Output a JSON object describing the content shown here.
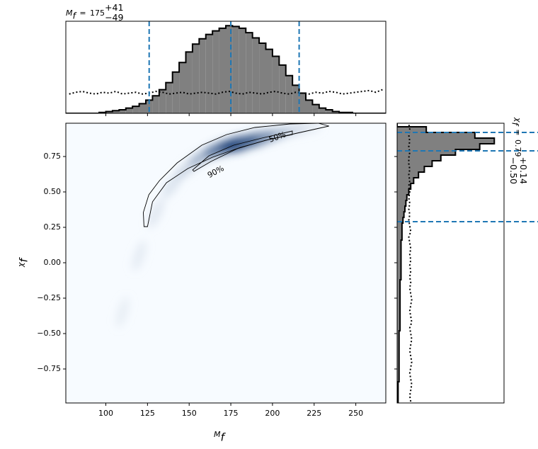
{
  "chart_data": [
    {
      "type": "density",
      "xlabel": {
        "symbol": "M",
        "sub": "f"
      },
      "ylabel": {
        "symbol": "χ",
        "sub": "f"
      },
      "xlim": [
        76,
        268
      ],
      "ylim": [
        -0.99,
        0.985
      ],
      "xticks": [
        100,
        125,
        150,
        175,
        200,
        225,
        250
      ],
      "yticks": [
        {
          "value": -0.75,
          "label": "−0.75"
        },
        {
          "value": -0.5,
          "label": "−0.50"
        },
        {
          "value": -0.25,
          "label": "−0.25"
        },
        {
          "value": 0,
          "label": "0.00"
        },
        0.25,
        {
          "value": 0.5,
          "label": "0.50"
        },
        0.75
      ],
      "cmap": [
        "#f7fbff",
        "#08306b"
      ],
      "density": {
        "x": [
          110,
          120,
          130,
          140,
          150,
          160,
          170,
          180,
          190,
          200,
          210,
          220
        ],
        "y": [
          -0.35,
          0.05,
          0.35,
          0.55,
          0.68,
          0.76,
          0.81,
          0.84,
          0.87,
          0.9,
          0.93,
          0.95
        ],
        "values": [
          0.03,
          0.06,
          0.1,
          0.15,
          0.25,
          0.45,
          0.75,
          1.0,
          0.8,
          0.45,
          0.2,
          0.08
        ]
      },
      "contour_color": "#000000",
      "contours": [
        {
          "label": "90%",
          "x": [
            122.9,
            122.5,
            125.8,
            132.2,
            142.8,
            157.6,
            172.5,
            189.4,
            210.6,
            227.5,
            233.9,
            214.8,
            197.9,
            180.9,
            164.0,
            149.2,
            136.4,
            128.0,
            125.0
          ],
          "y": [
            0.255,
            0.355,
            0.48,
            0.58,
            0.705,
            0.83,
            0.905,
            0.955,
            0.98,
            0.985,
            0.965,
            0.915,
            0.87,
            0.815,
            0.745,
            0.665,
            0.565,
            0.43,
            0.255
          ]
        },
        {
          "label": "50%",
          "x": [
            152.1,
            161.9,
            176.7,
            193.6,
            211.9,
            211.9,
            195.8,
            178.8,
            163.1,
            152.9
          ],
          "y": [
            0.655,
            0.755,
            0.83,
            0.88,
            0.93,
            0.905,
            0.865,
            0.805,
            0.715,
            0.645
          ]
        }
      ]
    },
    {
      "type": "histogram",
      "orientation": "vertical",
      "title": {
        "symbol": "M",
        "sub": "f",
        "relation": "=",
        "value": 175,
        "upper": "+41",
        "lower": "−49"
      },
      "xlim": [
        76,
        268
      ],
      "ylim": [
        0,
        1.05
      ],
      "xticks": [
        100,
        125,
        150,
        175,
        200,
        225,
        250
      ],
      "bins": [
        76,
        80,
        84,
        88,
        92,
        96,
        100,
        104,
        108,
        112,
        116,
        120,
        124,
        128,
        132,
        136,
        140,
        144,
        148,
        152,
        156,
        160,
        164,
        168,
        172,
        176,
        180,
        184,
        188,
        192,
        196,
        200,
        204,
        208,
        212,
        216,
        220,
        224,
        228,
        232,
        236,
        240,
        244,
        248,
        252,
        256,
        260,
        264,
        268
      ],
      "values": [
        0,
        0,
        0,
        0,
        0,
        0.01,
        0.02,
        0.03,
        0.04,
        0.06,
        0.08,
        0.11,
        0.15,
        0.2,
        0.27,
        0.35,
        0.47,
        0.58,
        0.7,
        0.79,
        0.85,
        0.9,
        0.94,
        0.97,
        1.0,
        0.99,
        0.97,
        0.92,
        0.86,
        0.8,
        0.73,
        0.65,
        0.55,
        0.43,
        0.32,
        0.23,
        0.15,
        0.1,
        0.06,
        0.04,
        0.02,
        0.01,
        0.01,
        0,
        0,
        0,
        0,
        0
      ],
      "prior": [
        0.22,
        0.24,
        0.25,
        0.23,
        0.22,
        0.24,
        0.23,
        0.25,
        0.22,
        0.23,
        0.24,
        0.22,
        0.23,
        0.25,
        0.24,
        0.22,
        0.23,
        0.24,
        0.22,
        0.23,
        0.24,
        0.23,
        0.22,
        0.24,
        0.25,
        0.23,
        0.22,
        0.24,
        0.23,
        0.22,
        0.24,
        0.25,
        0.23,
        0.22,
        0.24,
        0.23,
        0.22,
        0.24,
        0.23,
        0.25,
        0.24,
        0.22,
        0.23,
        0.24,
        0.25,
        0.26,
        0.24,
        0.27
      ],
      "color": "#808080",
      "edgecolor": "#000000",
      "quantiles": [
        126,
        175,
        216
      ],
      "quantile_color": "#1f77b4"
    },
    {
      "type": "histogram",
      "orientation": "horizontal",
      "title": {
        "symbol": "χ",
        "sub": "f",
        "relation": "=",
        "value": 0.79,
        "upper": "+0.14",
        "lower": "−0.50"
      },
      "xlim": [
        0,
        1.1
      ],
      "ylim": [
        -0.99,
        0.985
      ],
      "yticks": [
        -0.75,
        -0.5,
        -0.25,
        0,
        0.25,
        0.5,
        0.75
      ],
      "bins": [
        -1.0,
        -0.96,
        -0.92,
        -0.88,
        -0.84,
        -0.8,
        -0.76,
        -0.72,
        -0.68,
        -0.64,
        -0.6,
        -0.56,
        -0.52,
        -0.48,
        -0.44,
        -0.4,
        -0.36,
        -0.32,
        -0.28,
        -0.24,
        -0.2,
        -0.16,
        -0.12,
        -0.08,
        -0.04,
        0,
        0.04,
        0.08,
        0.12,
        0.16,
        0.2,
        0.24,
        0.28,
        0.32,
        0.36,
        0.4,
        0.44,
        0.48,
        0.52,
        0.56,
        0.6,
        0.64,
        0.68,
        0.72,
        0.76,
        0.8,
        0.84,
        0.88,
        0.92,
        0.96,
        1.0
      ],
      "values": [
        0.01,
        0.01,
        0.01,
        0.01,
        0.02,
        0.02,
        0.02,
        0.02,
        0.02,
        0.02,
        0.02,
        0.02,
        0.02,
        0.03,
        0.03,
        0.03,
        0.03,
        0.03,
        0.03,
        0.03,
        0.03,
        0.03,
        0.04,
        0.04,
        0.04,
        0.04,
        0.04,
        0.04,
        0.04,
        0.05,
        0.05,
        0.05,
        0.06,
        0.07,
        0.08,
        0.09,
        0.1,
        0.12,
        0.14,
        0.17,
        0.22,
        0.28,
        0.36,
        0.45,
        0.6,
        0.85,
        1.0,
        0.8,
        0.3,
        0
      ],
      "prior": [
        0.14,
        0.13,
        0.14,
        0.15,
        0.14,
        0.13,
        0.14,
        0.15,
        0.14,
        0.13,
        0.14,
        0.15,
        0.14,
        0.13,
        0.15,
        0.14,
        0.13,
        0.14,
        0.15,
        0.14,
        0.13,
        0.14,
        0.13,
        0.14,
        0.13,
        0.14,
        0.13,
        0.14,
        0.13,
        0.12,
        0.14,
        0.13,
        0.12,
        0.13,
        0.12,
        0.13,
        0.12,
        0.13,
        0.12,
        0.13,
        0.12,
        0.13,
        0.12,
        0.12,
        0.13,
        0.12,
        0.13,
        0.12,
        0.13,
        0.12
      ],
      "color": "#808080",
      "edgecolor": "#000000",
      "quantiles": [
        0.29,
        0.79,
        0.92
      ],
      "quantile_color": "#1f77b4"
    }
  ]
}
